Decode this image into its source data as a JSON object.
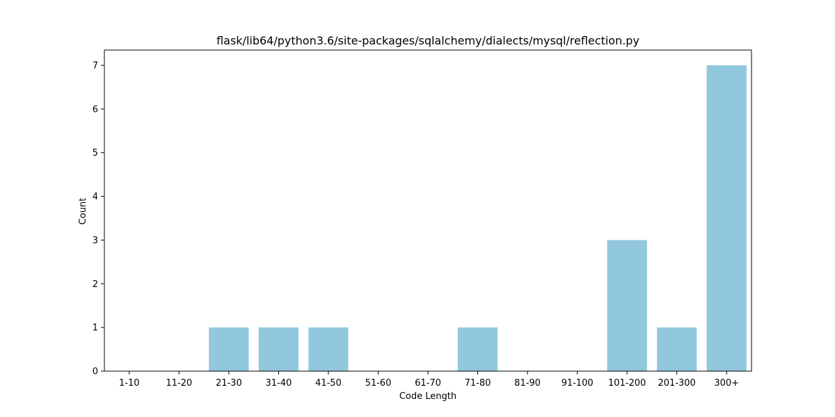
{
  "chart_data": {
    "type": "bar",
    "title": "flask/lib64/python3.6/site-packages/sqlalchemy/dialects/mysql/reflection.py",
    "xlabel": "Code Length",
    "ylabel": "Count",
    "categories": [
      "1-10",
      "11-20",
      "21-30",
      "31-40",
      "41-50",
      "51-60",
      "61-70",
      "71-80",
      "81-90",
      "91-100",
      "101-200",
      "201-300",
      "300+"
    ],
    "values": [
      0,
      0,
      1,
      1,
      1,
      0,
      0,
      1,
      0,
      0,
      3,
      1,
      7
    ],
    "ylim": [
      0,
      7.35
    ],
    "yticks": [
      0,
      1,
      2,
      3,
      4,
      5,
      6,
      7
    ],
    "grid": false,
    "legend": "none",
    "colors": {
      "bar": "#92c8de",
      "axis": "#000000"
    }
  }
}
